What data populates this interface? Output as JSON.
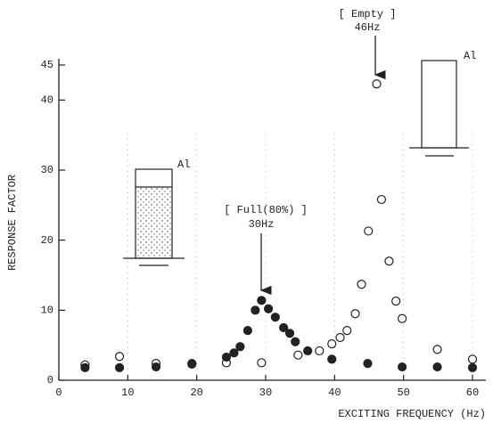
{
  "chart_data": {
    "type": "scatter",
    "xlabel": "EXCITING FREQUENCY (Hz)",
    "ylabel": "RESPONSE FACTOR",
    "annotations": [
      "[ Empty ]",
      "46Hz",
      "[ Full(80%) ]",
      "30Hz",
      "Al",
      "Al"
    ],
    "xlim": [
      0,
      60
    ],
    "ylim": [
      0,
      45
    ],
    "xticks": [
      0,
      10,
      20,
      30,
      40,
      50,
      60
    ],
    "yticks": [
      0,
      10,
      20,
      30,
      40,
      45
    ],
    "grid": true,
    "series": [
      {
        "marker": "open",
        "color": "#222",
        "x": [
          3.8,
          8.8,
          14.1,
          19.3,
          24.3,
          29.4,
          34.7,
          37.8,
          39.6,
          40.8,
          41.8,
          43,
          43.9,
          44.9,
          46.1,
          46.8,
          47.9,
          48.9,
          49.8,
          54.9,
          60
        ],
        "values": [
          2.2,
          3.4,
          2.4,
          2.4,
          2.5,
          2.5,
          3.6,
          4.2,
          5.2,
          6.1,
          7.1,
          9.5,
          13.7,
          21.3,
          42.3,
          25.8,
          17,
          11.3,
          8.8,
          4.4,
          3.0
        ]
      },
      {
        "marker": "filled",
        "color": "#222",
        "x": [
          3.8,
          8.8,
          14.1,
          19.3,
          24.3,
          25.4,
          26.3,
          27.4,
          28.5,
          29.4,
          30.4,
          31.4,
          32.6,
          33.5,
          34.3,
          36.1,
          39.6,
          44.8,
          49.8,
          54.9,
          60
        ],
        "values": [
          1.8,
          1.8,
          1.9,
          2.3,
          3.3,
          3.9,
          4.8,
          7.1,
          10,
          11.4,
          10.2,
          9,
          7.5,
          6.7,
          5.5,
          4.2,
          3.0,
          2.4,
          1.9,
          1.9,
          1.8
        ]
      }
    ]
  }
}
